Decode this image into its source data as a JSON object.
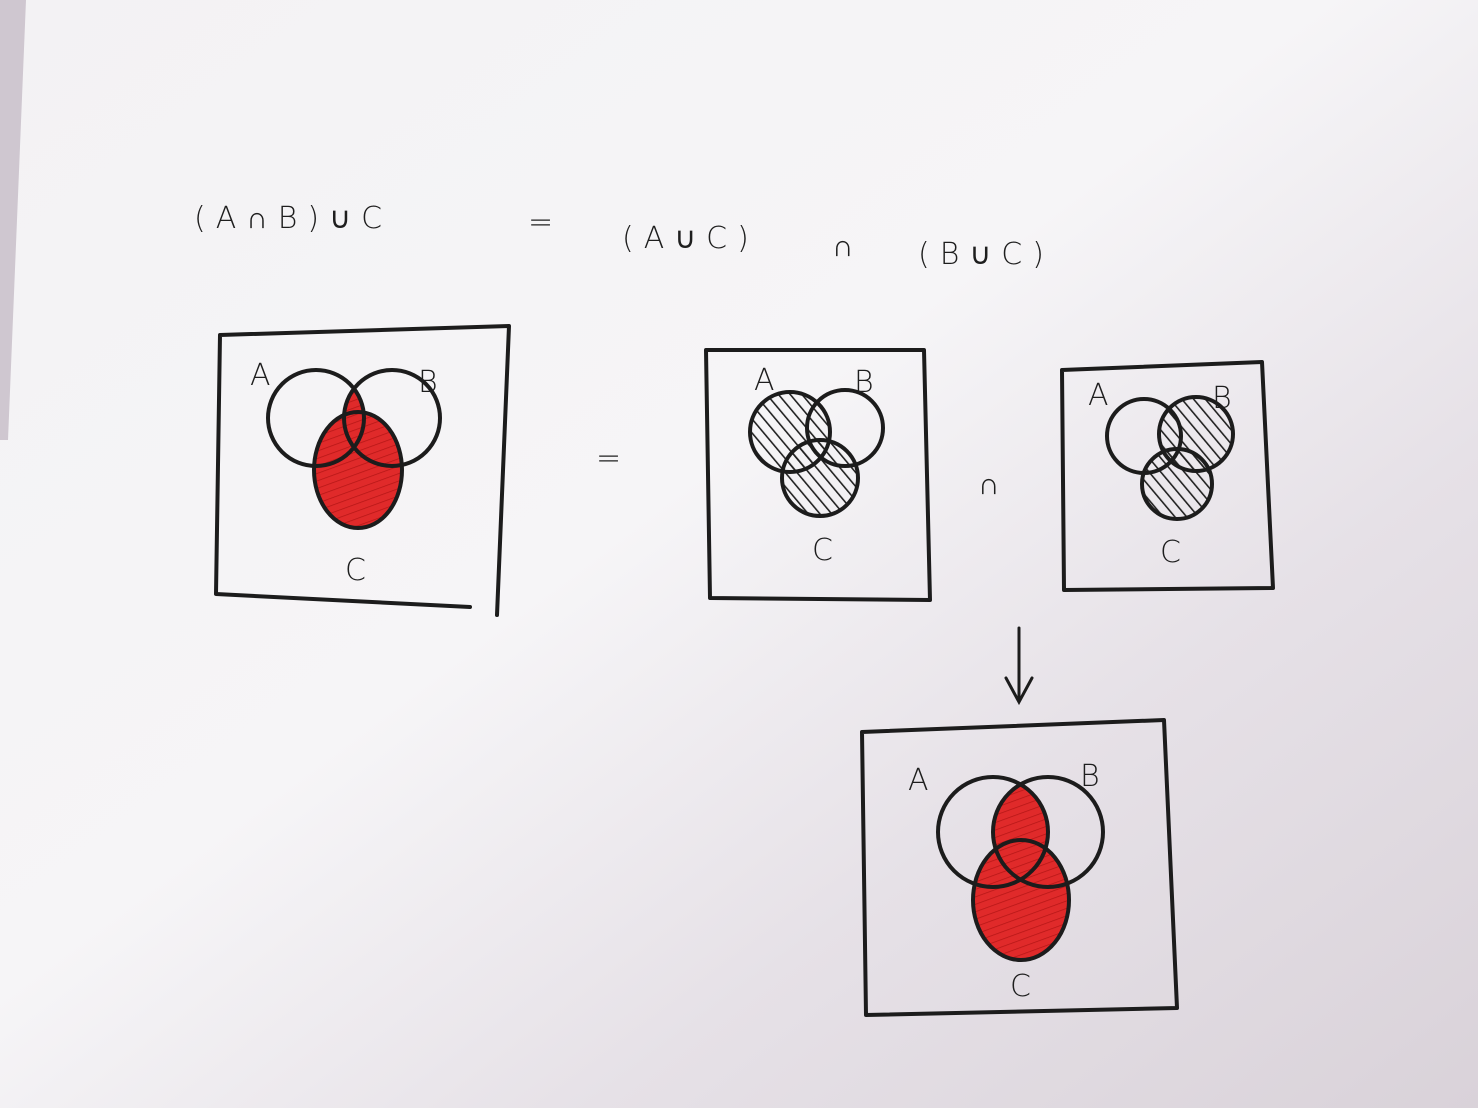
{
  "equation": {
    "left": "(A∩B)∪C",
    "equals": "=",
    "right_1": "(A∪C)",
    "intersect": "∩",
    "right_2": "(B∪C)"
  },
  "diagrams": {
    "d1": {
      "label_a": "A",
      "label_b": "B",
      "label_c": "C"
    },
    "d2": {
      "label_a": "A",
      "label_b": "B",
      "label_c": "C"
    },
    "d3": {
      "label_a": "A",
      "label_b": "B",
      "label_c": "C"
    },
    "d4": {
      "label_a": "A",
      "label_b": "B",
      "label_c": "C"
    }
  },
  "operators": {
    "equals": "=",
    "intersect": "∩",
    "arrow": "↓"
  },
  "colors": {
    "highlight": "#d92525",
    "ink": "#1c1c1c",
    "paper": "#f4f2f4"
  }
}
